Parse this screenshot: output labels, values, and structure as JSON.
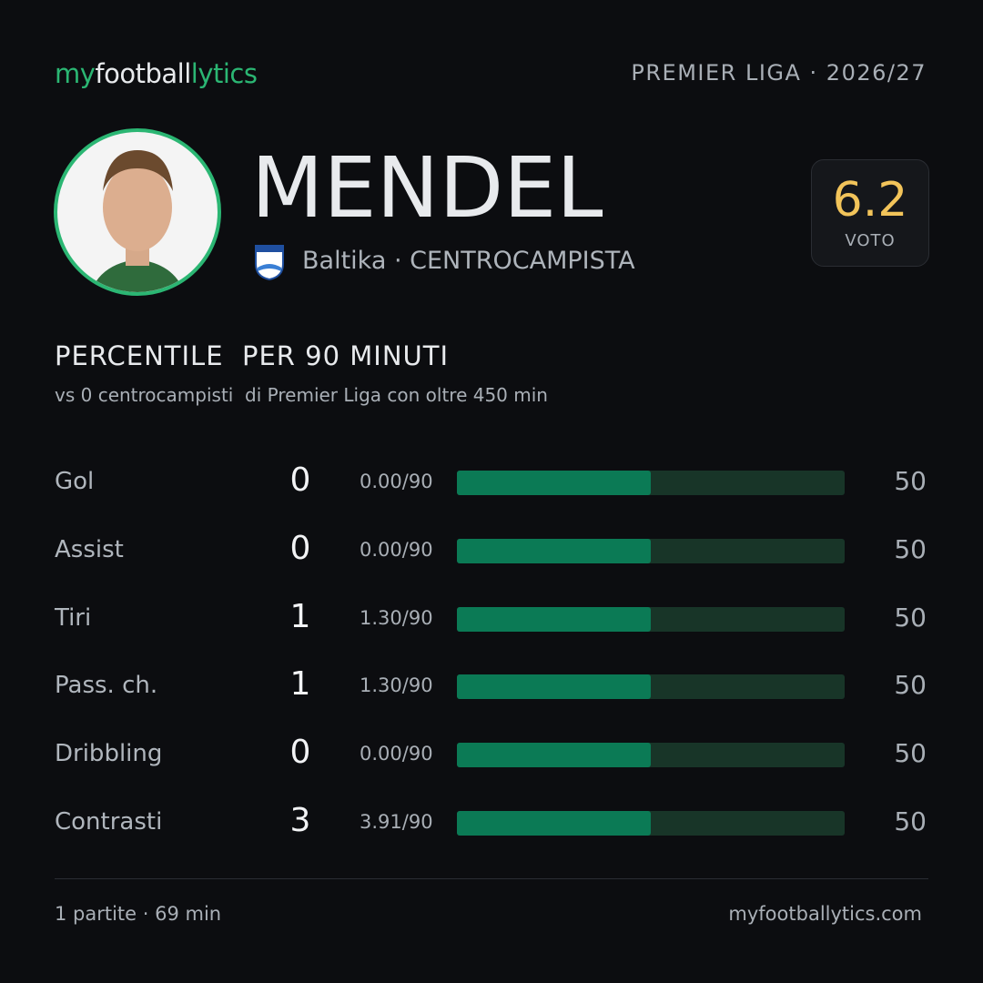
{
  "header": {
    "brand": [
      "my",
      "football",
      "lytics"
    ],
    "competition": "PREMIER LIGA · 2026/27"
  },
  "player": {
    "name": "MENDEL",
    "team": "Baltika",
    "role": "· CENTROCAMPISTA",
    "rating": 6.2,
    "rating_label": "VOTO"
  },
  "section": {
    "title": "PERCENTILE  PER 90 MINUTI",
    "subtitle": "vs 0 centrocampisti  di Premier Liga con oltre 450 min"
  },
  "stats": {
    "xlim": [
      0,
      100
    ],
    "rows": [
      {
        "label": "Gol",
        "total": 0,
        "per90": "0.00/90",
        "percentile": 50
      },
      {
        "label": "Assist",
        "total": 0,
        "per90": "0.00/90",
        "percentile": 50
      },
      {
        "label": "Tiri",
        "total": 1,
        "per90": "1.30/90",
        "percentile": 50
      },
      {
        "label": "Pass. ch.",
        "total": 1,
        "per90": "1.30/90",
        "percentile": 50
      },
      {
        "label": "Dribbling",
        "total": 0,
        "per90": "0.00/90",
        "percentile": 50
      },
      {
        "label": "Contrasti",
        "total": 3,
        "per90": "3.91/90",
        "percentile": 50
      }
    ]
  },
  "footer": {
    "matches": "1 partite · 69 min",
    "site": "myfootballytics.com"
  }
}
